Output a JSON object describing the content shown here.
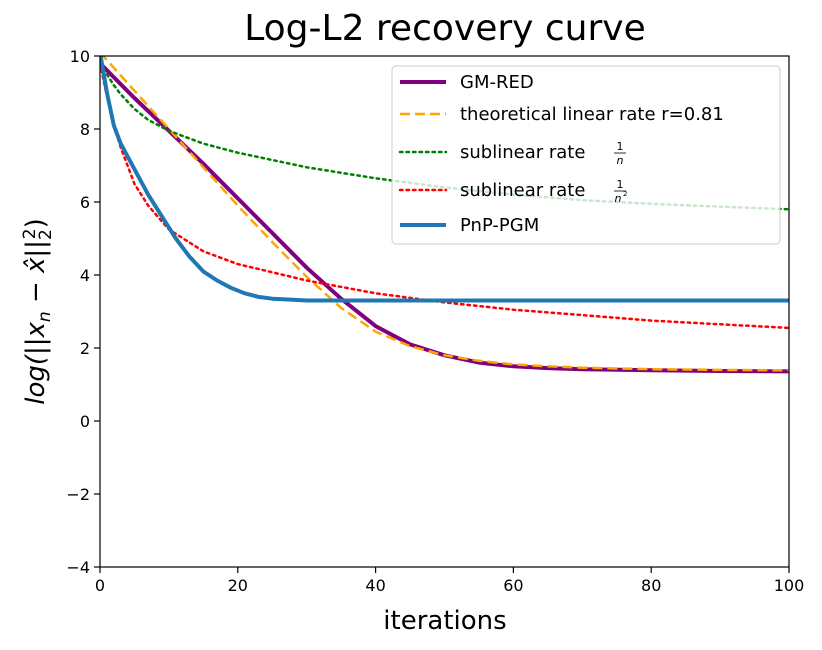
{
  "chart_data": {
    "type": "line",
    "title": "Log-L2 recovery curve",
    "xlabel": "iterations",
    "ylabel": "log(||x_n − x̂||²₂)",
    "xlim": [
      0,
      100
    ],
    "ylim": [
      -4,
      10
    ],
    "xticks": [
      0,
      20,
      40,
      60,
      80,
      100
    ],
    "yticks": [
      -4,
      -2,
      0,
      2,
      4,
      6,
      8,
      10
    ],
    "ytick_labels": [
      "−4",
      "−2",
      "0",
      "2",
      "4",
      "6",
      "8",
      "10"
    ],
    "grid": false,
    "legend_position": "top-right",
    "series": [
      {
        "name": "GM-RED",
        "color": "#800080",
        "style": "solid",
        "width": 4,
        "x": [
          0,
          5,
          10,
          15,
          20,
          25,
          30,
          35,
          40,
          45,
          50,
          55,
          60,
          65,
          70,
          80,
          90,
          100
        ],
        "y": [
          9.8,
          8.85,
          7.95,
          7.05,
          6.1,
          5.15,
          4.2,
          3.35,
          2.6,
          2.1,
          1.8,
          1.6,
          1.5,
          1.45,
          1.42,
          1.39,
          1.37,
          1.36
        ]
      },
      {
        "name": "theoretical linear rate r=0.81",
        "color": "#FFA500",
        "style": "dashed",
        "width": 2.5,
        "x": [
          0,
          5,
          10,
          15,
          20,
          25,
          30,
          35,
          40,
          45,
          50,
          55,
          60,
          65,
          70,
          80,
          90,
          100
        ],
        "y": [
          10.1,
          9.05,
          8.0,
          6.95,
          5.9,
          4.9,
          3.95,
          3.1,
          2.45,
          2.05,
          1.8,
          1.65,
          1.55,
          1.5,
          1.46,
          1.42,
          1.4,
          1.39
        ]
      },
      {
        "name": "sublinear rate 1/n",
        "label_prefix": "sublinear rate",
        "frac_num": "1",
        "frac_den": "n",
        "frac_sup": "",
        "color": "#008000",
        "style": "dotted",
        "width": 2.5,
        "x": [
          0,
          1,
          2,
          3,
          5,
          7,
          10,
          15,
          20,
          30,
          40,
          50,
          60,
          70,
          80,
          90,
          100
        ],
        "y": [
          9.8,
          9.5,
          9.2,
          8.95,
          8.55,
          8.25,
          7.95,
          7.6,
          7.35,
          6.95,
          6.65,
          6.4,
          6.2,
          6.05,
          5.95,
          5.87,
          5.8
        ]
      },
      {
        "name": "sublinear rate 1/n^2",
        "label_prefix": "sublinear rate",
        "frac_num": "1",
        "frac_den": "n",
        "frac_sup": "2",
        "color": "#FF0000",
        "style": "dotted",
        "width": 2.5,
        "x": [
          0,
          1,
          2,
          3,
          5,
          7,
          10,
          15,
          20,
          30,
          40,
          50,
          60,
          70,
          80,
          90,
          100
        ],
        "y": [
          9.8,
          8.9,
          8.1,
          7.5,
          6.5,
          5.9,
          5.25,
          4.65,
          4.3,
          3.85,
          3.5,
          3.25,
          3.05,
          2.9,
          2.75,
          2.65,
          2.55
        ]
      },
      {
        "name": "PnP-PGM",
        "color": "#1F77B4",
        "style": "solid",
        "width": 4,
        "x": [
          0,
          1,
          2,
          3,
          5,
          7,
          9,
          11,
          13,
          15,
          17,
          19,
          21,
          23,
          25,
          28,
          30,
          40,
          50,
          60,
          70,
          80,
          90,
          100
        ],
        "y": [
          10.1,
          9.0,
          8.1,
          7.6,
          6.9,
          6.2,
          5.6,
          5.0,
          4.5,
          4.1,
          3.85,
          3.65,
          3.5,
          3.4,
          3.35,
          3.32,
          3.3,
          3.3,
          3.3,
          3.3,
          3.3,
          3.3,
          3.3,
          3.3
        ]
      }
    ]
  }
}
